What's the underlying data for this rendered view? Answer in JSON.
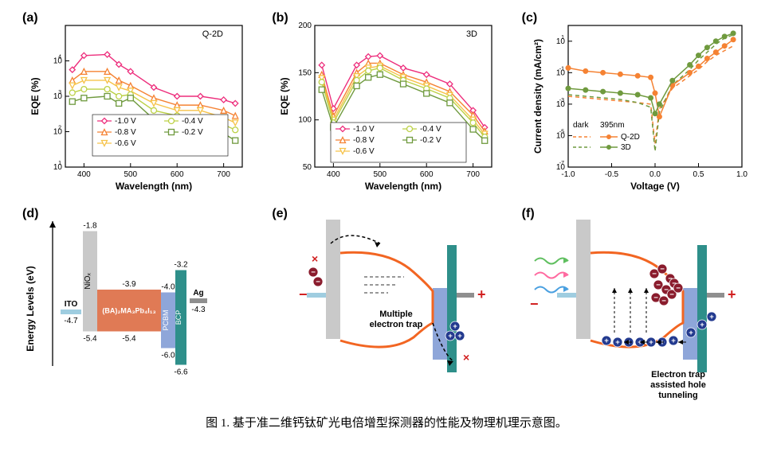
{
  "caption": "图 1. 基于准二维钙钛矿光电倍增型探测器的性能及物理机理示意图。",
  "panel_labels": {
    "a": "(a)",
    "b": "(b)",
    "c": "(c)",
    "d": "(d)",
    "e": "(e)",
    "f": "(f)"
  },
  "colors": {
    "series": {
      "neg1_0V": "#ed2e7c",
      "neg0_8V": "#f58233",
      "neg0_6V": "#f6c34a",
      "neg0_4V": "#bcd146",
      "neg0_2V": "#6f9a3e"
    },
    "q2d": "#f58233",
    "three_d": "#6f9a3e",
    "axis": "#000000",
    "band_outline": "#f26522",
    "niox": "#c9c9c9",
    "perov": "#e07a55",
    "pcbm": "#8ea6d9",
    "bcp": "#2e8f8a",
    "ag": "#8f8f8f",
    "ito": "#9fcde0",
    "hole": "#8a1c2d",
    "electron": "#233a8f",
    "cross": "#d11f1f",
    "light_r": "#ff6aa0",
    "light_g": "#5fbf5f",
    "light_b": "#4aa0e0"
  },
  "chart_a": {
    "type": "line-log",
    "inset_label": "Q-2D",
    "xlabel": "Wavelength (nm)",
    "ylabel": "EQE (%)",
    "xlim": [
      360,
      740
    ],
    "xticks": [
      400,
      500,
      600,
      700
    ],
    "ylim": [
      1,
      5
    ],
    "yticks": [
      1,
      2,
      3,
      4
    ],
    "x": [
      375,
      400,
      450,
      475,
      500,
      550,
      600,
      650,
      700,
      725
    ],
    "series": [
      {
        "key": "neg1_0V",
        "label": "-1.0 V",
        "marker": "diamond",
        "y": [
          3.75,
          4.15,
          4.18,
          3.9,
          3.7,
          3.25,
          3.0,
          3.0,
          2.9,
          2.8
        ]
      },
      {
        "key": "neg0_8V",
        "label": "-0.8 V",
        "marker": "triangle",
        "y": [
          3.45,
          3.7,
          3.7,
          3.45,
          3.3,
          2.95,
          2.75,
          2.75,
          2.6,
          2.45
        ]
      },
      {
        "key": "neg0_6V",
        "label": "-0.6 V",
        "marker": "invtriangle",
        "y": [
          3.3,
          3.45,
          3.45,
          3.25,
          3.15,
          2.8,
          2.6,
          2.6,
          2.4,
          2.25
        ]
      },
      {
        "key": "neg0_4V",
        "label": "-0.4 V",
        "marker": "circle",
        "y": [
          3.1,
          3.2,
          3.2,
          3.0,
          3.05,
          2.6,
          2.45,
          2.4,
          2.2,
          2.05
        ]
      },
      {
        "key": "neg0_2V",
        "label": "-0.2 V",
        "marker": "square",
        "y": [
          2.85,
          2.95,
          3.0,
          2.8,
          2.95,
          2.35,
          2.25,
          2.2,
          1.95,
          1.75
        ]
      }
    ]
  },
  "chart_b": {
    "type": "line",
    "inset_label": "3D",
    "xlabel": "Wavelength (nm)",
    "ylabel": "EQE (%)",
    "xlim": [
      360,
      740
    ],
    "xticks": [
      400,
      500,
      600,
      700
    ],
    "ylim": [
      50,
      200
    ],
    "yticks": [
      50,
      100,
      150,
      200
    ],
    "x": [
      375,
      400,
      450,
      475,
      500,
      550,
      600,
      650,
      700,
      725
    ],
    "series": [
      {
        "key": "neg1_0V",
        "label": "-1.0 V",
        "marker": "diamond",
        "y": [
          158,
          112,
          158,
          167,
          168,
          155,
          148,
          138,
          110,
          92
        ]
      },
      {
        "key": "neg0_8V",
        "label": "-0.8 V",
        "marker": "triangle",
        "y": [
          148,
          104,
          150,
          160,
          160,
          148,
          140,
          130,
          105,
          88
        ]
      },
      {
        "key": "neg0_6V",
        "label": "-0.6 V",
        "marker": "invtriangle",
        "y": [
          144,
          100,
          146,
          155,
          157,
          145,
          136,
          126,
          100,
          85
        ]
      },
      {
        "key": "neg0_4V",
        "label": "-0.4 V",
        "marker": "circle",
        "y": [
          140,
          97,
          142,
          152,
          155,
          142,
          133,
          123,
          97,
          82
        ]
      },
      {
        "key": "neg0_2V",
        "label": "-0.2 V",
        "marker": "square",
        "y": [
          132,
          92,
          136,
          145,
          148,
          138,
          128,
          118,
          90,
          78
        ]
      }
    ]
  },
  "chart_c": {
    "type": "semilogy",
    "xlabel": "Voltage (V)",
    "ylabel": "Current density (mA/cm²)",
    "xlim": [
      -1.0,
      1.0
    ],
    "xticks": [
      -1.0,
      -0.5,
      0.0,
      0.5,
      1.0
    ],
    "ylim_exp": [
      -7,
      2
    ],
    "ytick_exp": [
      -7,
      -5,
      -3,
      -1,
      1
    ],
    "legend_title_left": "dark",
    "legend_title_right": "395nm",
    "legend_rows": [
      {
        "key": "q2d",
        "label": "Q-2D",
        "dash_dark": true
      },
      {
        "key": "three_d",
        "label": "3D",
        "dash_dark": true
      }
    ],
    "x": [
      -1.0,
      -0.8,
      -0.6,
      -0.4,
      -0.2,
      -0.05,
      0.0,
      0.05,
      0.2,
      0.4,
      0.5,
      0.6,
      0.7,
      0.8,
      0.9
    ],
    "curves": {
      "q2d_light": [
        -0.7,
        -0.9,
        -1.0,
        -1.1,
        -1.2,
        -1.3,
        -2.3,
        -3.8,
        -1.8,
        -1.0,
        -0.6,
        -0.1,
        0.3,
        0.7,
        1.1
      ],
      "q2d_dark": [
        -2.5,
        -2.6,
        -2.7,
        -2.8,
        -2.9,
        -3.0,
        -5.5,
        -3.3,
        -2.0,
        -1.2,
        -0.8,
        -0.3,
        0.1,
        0.4,
        0.7
      ],
      "td_light": [
        -2.0,
        -2.1,
        -2.2,
        -2.3,
        -2.4,
        -2.6,
        -3.6,
        -3.0,
        -1.5,
        -0.5,
        0.1,
        0.6,
        1.0,
        1.3,
        1.5
      ],
      "td_dark": [
        -2.4,
        -2.5,
        -2.6,
        -2.7,
        -2.9,
        -3.2,
        -6.0,
        -3.5,
        -1.8,
        -0.8,
        -0.2,
        0.3,
        0.8,
        1.2,
        1.4
      ]
    }
  },
  "diagram_d": {
    "ylabel": "Energy Levels (eV)",
    "levels": {
      "niox_top": "-1.8",
      "niox_bot": "-5.4",
      "perov_top": "-3.9",
      "perov_bot": "-5.4",
      "pcbm_top": "-4.0",
      "pcbm_bot": "-6.0",
      "bcp_top": "-3.2",
      "bcp_bot": "-6.6",
      "ito": "-4.7",
      "ag": "-4.3"
    },
    "labels": {
      "ito": "ITO",
      "niox": "NiOₓ",
      "perov": "(BA)₂MA₃Pb₄I₁₃",
      "pcbm": "PCBM",
      "bcp": "BCP",
      "ag": "Ag"
    }
  },
  "diagram_e": {
    "caption": "Multiple electron trap"
  },
  "diagram_f": {
    "caption": "Electron trap assisted hole tunneling"
  },
  "font_sizes": {
    "panel_label": 16,
    "axis_label": 12,
    "tick": 10,
    "legend": 10,
    "anno": 11,
    "caption": 15
  }
}
